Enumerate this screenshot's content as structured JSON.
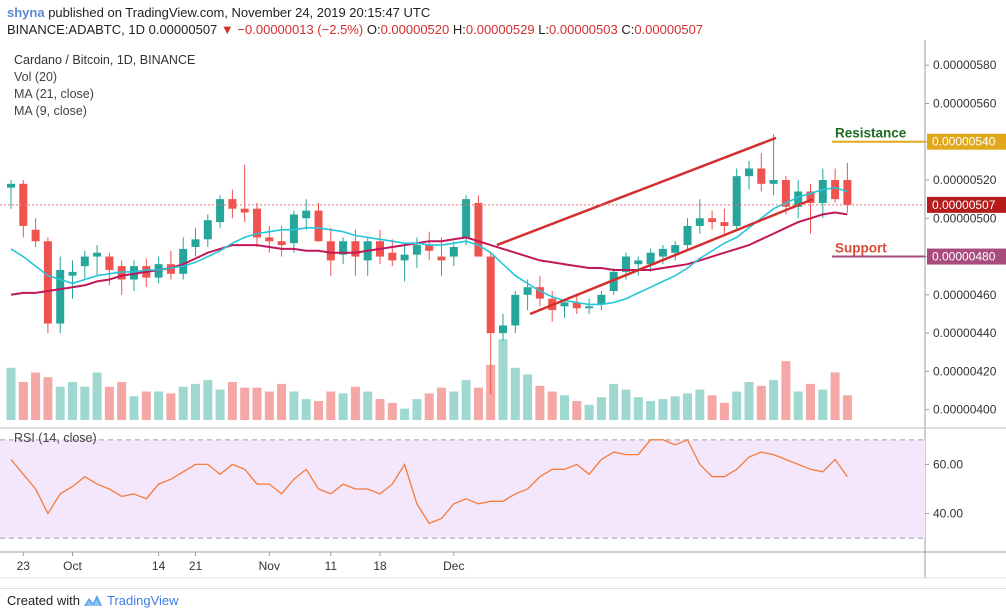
{
  "header": {
    "username": "shyna",
    "published": " published on TradingView.com, November 24, 2019 20:15:47 UTC",
    "symbol": "BINANCE:ADABTC, 1D",
    "last": "0.00000507",
    "change": "−0.00000013 (−2.5%)",
    "o_label": "O:",
    "o_value": "0.00000520",
    "h_label": "H:",
    "h_value": "0.00000529",
    "l_label": "L:",
    "l_value": "0.00000503",
    "c_label": "C:",
    "c_value": "0.00000507"
  },
  "legend": {
    "title": "Cardano / Bitcoin, 1D, BINANCE",
    "vol": "Vol (20)",
    "ma21": "MA (21, close)",
    "ma9": "MA (9, close)"
  },
  "colors": {
    "up": "#26a69a",
    "down": "#ef5350",
    "vol_up": "#9fd8d1",
    "vol_down": "#f4a7a5",
    "ma9": "#26c6da",
    "ma21": "#c2185b",
    "trendline": "#d32f2f",
    "rsi": "#f57c3a",
    "rsi_bg": "#f4e6fb",
    "resistance": "#e2a81c",
    "support": "#a84c7d",
    "annotation_text": "#1f6b22",
    "support_text": "#d84a3a",
    "price_tag": "#b71c1c"
  },
  "footer": {
    "created": "Created with",
    "brand": "TradingView"
  },
  "chart_data": {
    "type": "candlestick",
    "y_axis": {
      "ticks": [
        "0.00000580",
        "0.00000560",
        "0.00000540",
        "0.00000520",
        "0.00000500",
        "0.00000480",
        "0.00000460",
        "0.00000440",
        "0.00000420",
        "0.00000400"
      ],
      "tick_values": [
        580,
        560,
        540,
        520,
        500,
        480,
        460,
        440,
        420,
        400
      ],
      "unit": "1e-8 BTC",
      "range": [
        392,
        590
      ]
    },
    "x_axis": {
      "labels": [
        "23",
        "Oct",
        "14",
        "21",
        "Nov",
        "11",
        "18",
        "Dec"
      ],
      "label_index": [
        1,
        5,
        12,
        15,
        21,
        26,
        30,
        36
      ]
    },
    "ohlc": [
      {
        "o": 516,
        "h": 520,
        "l": 505,
        "c": 518
      },
      {
        "o": 518,
        "h": 520,
        "l": 490,
        "c": 496
      },
      {
        "o": 494,
        "h": 500,
        "l": 485,
        "c": 488
      },
      {
        "o": 488,
        "h": 490,
        "l": 440,
        "c": 445
      },
      {
        "o": 445,
        "h": 480,
        "l": 440,
        "c": 473
      },
      {
        "o": 470,
        "h": 478,
        "l": 458,
        "c": 472
      },
      {
        "o": 475,
        "h": 483,
        "l": 468,
        "c": 480
      },
      {
        "o": 480,
        "h": 486,
        "l": 470,
        "c": 482
      },
      {
        "o": 480,
        "h": 482,
        "l": 465,
        "c": 473
      },
      {
        "o": 475,
        "h": 478,
        "l": 460,
        "c": 468
      },
      {
        "o": 468,
        "h": 478,
        "l": 462,
        "c": 475
      },
      {
        "o": 475,
        "h": 479,
        "l": 464,
        "c": 469
      },
      {
        "o": 469,
        "h": 480,
        "l": 466,
        "c": 476
      },
      {
        "o": 476,
        "h": 483,
        "l": 468,
        "c": 471
      },
      {
        "o": 471,
        "h": 490,
        "l": 468,
        "c": 484
      },
      {
        "o": 485,
        "h": 495,
        "l": 480,
        "c": 489
      },
      {
        "o": 489,
        "h": 502,
        "l": 485,
        "c": 499
      },
      {
        "o": 498,
        "h": 512,
        "l": 495,
        "c": 510
      },
      {
        "o": 510,
        "h": 515,
        "l": 500,
        "c": 505
      },
      {
        "o": 505,
        "h": 528,
        "l": 498,
        "c": 503
      },
      {
        "o": 505,
        "h": 508,
        "l": 485,
        "c": 490
      },
      {
        "o": 490,
        "h": 496,
        "l": 482,
        "c": 488
      },
      {
        "o": 488,
        "h": 496,
        "l": 480,
        "c": 486
      },
      {
        "o": 487,
        "h": 504,
        "l": 482,
        "c": 502
      },
      {
        "o": 500,
        "h": 510,
        "l": 494,
        "c": 504
      },
      {
        "o": 504,
        "h": 508,
        "l": 488,
        "c": 488
      },
      {
        "o": 488,
        "h": 495,
        "l": 470,
        "c": 478
      },
      {
        "o": 481,
        "h": 490,
        "l": 476,
        "c": 488
      },
      {
        "o": 488,
        "h": 494,
        "l": 470,
        "c": 480
      },
      {
        "o": 478,
        "h": 490,
        "l": 470,
        "c": 488
      },
      {
        "o": 488,
        "h": 494,
        "l": 476,
        "c": 480
      },
      {
        "o": 482,
        "h": 489,
        "l": 475,
        "c": 478
      },
      {
        "o": 478,
        "h": 486,
        "l": 467,
        "c": 481
      },
      {
        "o": 481,
        "h": 490,
        "l": 474,
        "c": 486
      },
      {
        "o": 486,
        "h": 493,
        "l": 478,
        "c": 483
      },
      {
        "o": 480,
        "h": 490,
        "l": 470,
        "c": 478
      },
      {
        "o": 480,
        "h": 488,
        "l": 475,
        "c": 485
      },
      {
        "o": 490,
        "h": 512,
        "l": 486,
        "c": 510
      },
      {
        "o": 508,
        "h": 512,
        "l": 480,
        "c": 480
      },
      {
        "o": 480,
        "h": 482,
        "l": 408,
        "c": 440
      },
      {
        "o": 440,
        "h": 450,
        "l": 436,
        "c": 444
      },
      {
        "o": 444,
        "h": 462,
        "l": 440,
        "c": 460
      },
      {
        "o": 460,
        "h": 468,
        "l": 452,
        "c": 464
      },
      {
        "o": 464,
        "h": 470,
        "l": 454,
        "c": 458
      },
      {
        "o": 458,
        "h": 462,
        "l": 446,
        "c": 452
      },
      {
        "o": 454,
        "h": 458,
        "l": 448,
        "c": 456
      },
      {
        "o": 456,
        "h": 460,
        "l": 450,
        "c": 453
      },
      {
        "o": 453,
        "h": 458,
        "l": 450,
        "c": 454
      },
      {
        "o": 455,
        "h": 462,
        "l": 452,
        "c": 460
      },
      {
        "o": 462,
        "h": 474,
        "l": 460,
        "c": 472
      },
      {
        "o": 472,
        "h": 482,
        "l": 468,
        "c": 480
      },
      {
        "o": 476,
        "h": 480,
        "l": 470,
        "c": 478
      },
      {
        "o": 476,
        "h": 484,
        "l": 472,
        "c": 482
      },
      {
        "o": 480,
        "h": 486,
        "l": 476,
        "c": 484
      },
      {
        "o": 482,
        "h": 488,
        "l": 478,
        "c": 486
      },
      {
        "o": 486,
        "h": 500,
        "l": 484,
        "c": 496
      },
      {
        "o": 496,
        "h": 510,
        "l": 492,
        "c": 500
      },
      {
        "o": 500,
        "h": 504,
        "l": 494,
        "c": 498
      },
      {
        "o": 498,
        "h": 505,
        "l": 492,
        "c": 496
      },
      {
        "o": 496,
        "h": 526,
        "l": 494,
        "c": 522
      },
      {
        "o": 522,
        "h": 530,
        "l": 515,
        "c": 526
      },
      {
        "o": 526,
        "h": 534,
        "l": 514,
        "c": 518
      },
      {
        "o": 518,
        "h": 544,
        "l": 512,
        "c": 520
      },
      {
        "o": 520,
        "h": 522,
        "l": 502,
        "c": 506
      },
      {
        "o": 506,
        "h": 520,
        "l": 500,
        "c": 514
      },
      {
        "o": 514,
        "h": 518,
        "l": 492,
        "c": 508
      },
      {
        "o": 508,
        "h": 526,
        "l": 500,
        "c": 520
      },
      {
        "o": 520,
        "h": 526,
        "l": 508,
        "c": 510
      },
      {
        "o": 520,
        "h": 529,
        "l": 503,
        "c": 507
      }
    ],
    "volume": [
      0.55,
      0.4,
      0.5,
      0.45,
      0.35,
      0.4,
      0.35,
      0.5,
      0.35,
      0.4,
      0.25,
      0.3,
      0.3,
      0.28,
      0.35,
      0.38,
      0.42,
      0.32,
      0.4,
      0.34,
      0.34,
      0.3,
      0.38,
      0.3,
      0.22,
      0.2,
      0.3,
      0.28,
      0.35,
      0.3,
      0.22,
      0.18,
      0.12,
      0.22,
      0.28,
      0.34,
      0.3,
      0.42,
      0.34,
      0.58,
      0.85,
      0.55,
      0.48,
      0.36,
      0.3,
      0.26,
      0.2,
      0.16,
      0.24,
      0.38,
      0.32,
      0.24,
      0.2,
      0.22,
      0.25,
      0.28,
      0.32,
      0.26,
      0.18,
      0.3,
      0.4,
      0.36,
      0.42,
      0.62,
      0.3,
      0.38,
      0.32,
      0.5,
      0.26
    ],
    "ma9": [
      484,
      480,
      475,
      470,
      468,
      466,
      468,
      470,
      471,
      472,
      472,
      473,
      473,
      474,
      475,
      477,
      480,
      483,
      487,
      490,
      492,
      493,
      494,
      494,
      495,
      495,
      494,
      493,
      491,
      490,
      489,
      488,
      487,
      487,
      486,
      486,
      487,
      488,
      486,
      482,
      476,
      470,
      466,
      462,
      459,
      457,
      456,
      455,
      455,
      456,
      458,
      461,
      464,
      467,
      470,
      474,
      479,
      483,
      487,
      490,
      495,
      500,
      505,
      508,
      511,
      513,
      515,
      516,
      514
    ],
    "ma21": [
      460,
      461,
      461,
      462,
      463,
      464,
      465,
      467,
      468,
      470,
      471,
      472,
      473,
      474,
      476,
      479,
      482,
      484,
      486,
      486,
      486,
      485,
      484,
      484,
      483,
      483,
      482,
      482,
      482,
      483,
      484,
      485,
      486,
      487,
      488,
      488,
      489,
      490,
      488,
      486,
      484,
      482,
      480,
      478,
      477,
      476,
      475,
      474,
      474,
      473,
      473,
      473,
      473,
      474,
      475,
      476,
      478,
      480,
      482,
      484,
      486,
      489,
      492,
      495,
      498,
      500,
      502,
      503,
      502
    ],
    "rsi": [
      62,
      56,
      50,
      40,
      48,
      51,
      55,
      52,
      50,
      47,
      48,
      46,
      52,
      54,
      57,
      60,
      60,
      56,
      60,
      58,
      52,
      52,
      48,
      54,
      58,
      50,
      48,
      52,
      50,
      50,
      48,
      52,
      60,
      44,
      36,
      38,
      44,
      46,
      44,
      45,
      45,
      48,
      50,
      55,
      58,
      58,
      60,
      56,
      62,
      65,
      64,
      64,
      70,
      70,
      68,
      70,
      60,
      55,
      55,
      58,
      63,
      65,
      64,
      62,
      60,
      58,
      57,
      62,
      55
    ],
    "rsi_axis": {
      "ticks": [
        "60.00",
        "40.00"
      ],
      "tick_values": [
        60,
        40
      ],
      "band": [
        30,
        70
      ],
      "range": [
        26,
        74
      ]
    },
    "annotations": {
      "resistance_label": "Resistance",
      "resistance_value": "0.00000540",
      "support_label": "Support",
      "support_value": "0.00000480",
      "last_price_tag": "0.00000507"
    },
    "legend_placement": "top-left"
  }
}
